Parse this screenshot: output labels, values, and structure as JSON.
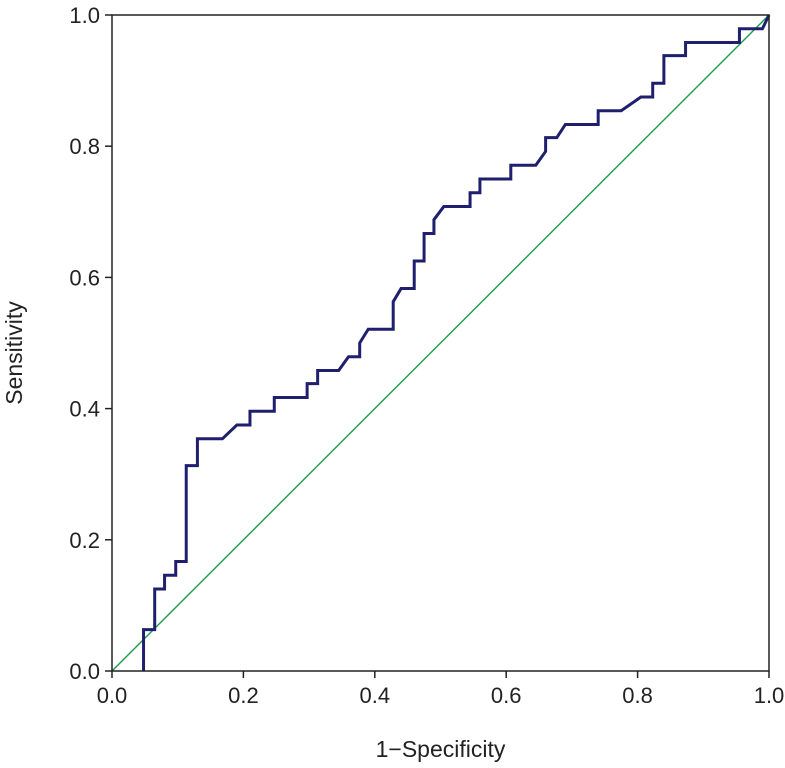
{
  "chart_data": {
    "type": "line",
    "title": "",
    "xlabel": "1−Specificity",
    "ylabel": "Sensitivity",
    "xlim": [
      0.0,
      1.0
    ],
    "ylim": [
      0.0,
      1.0
    ],
    "x_ticks": [
      "0.0",
      "0.2",
      "0.4",
      "0.6",
      "0.8",
      "1.0"
    ],
    "y_ticks": [
      "0.0",
      "0.2",
      "0.4",
      "0.6",
      "0.8",
      "1.0"
    ],
    "grid": false,
    "legend": "none",
    "series": [
      {
        "color": "#1f1f6e",
        "style": "step",
        "points": [
          [
            0.048,
            0.0
          ],
          [
            0.048,
            0.063
          ],
          [
            0.065,
            0.063
          ],
          [
            0.065,
            0.125
          ],
          [
            0.08,
            0.125
          ],
          [
            0.08,
            0.146
          ],
          [
            0.097,
            0.146
          ],
          [
            0.097,
            0.167
          ],
          [
            0.113,
            0.167
          ],
          [
            0.113,
            0.313
          ],
          [
            0.13,
            0.313
          ],
          [
            0.13,
            0.354
          ],
          [
            0.168,
            0.354
          ],
          [
            0.19,
            0.375
          ],
          [
            0.21,
            0.375
          ],
          [
            0.21,
            0.396
          ],
          [
            0.247,
            0.396
          ],
          [
            0.247,
            0.417
          ],
          [
            0.297,
            0.417
          ],
          [
            0.297,
            0.438
          ],
          [
            0.313,
            0.438
          ],
          [
            0.313,
            0.458
          ],
          [
            0.345,
            0.458
          ],
          [
            0.36,
            0.479
          ],
          [
            0.377,
            0.479
          ],
          [
            0.377,
            0.5
          ],
          [
            0.39,
            0.521
          ],
          [
            0.428,
            0.521
          ],
          [
            0.428,
            0.563
          ],
          [
            0.44,
            0.583
          ],
          [
            0.46,
            0.583
          ],
          [
            0.46,
            0.625
          ],
          [
            0.475,
            0.625
          ],
          [
            0.475,
            0.667
          ],
          [
            0.49,
            0.667
          ],
          [
            0.49,
            0.688
          ],
          [
            0.505,
            0.708
          ],
          [
            0.545,
            0.708
          ],
          [
            0.545,
            0.729
          ],
          [
            0.56,
            0.729
          ],
          [
            0.56,
            0.75
          ],
          [
            0.607,
            0.75
          ],
          [
            0.607,
            0.771
          ],
          [
            0.645,
            0.771
          ],
          [
            0.66,
            0.792
          ],
          [
            0.66,
            0.813
          ],
          [
            0.677,
            0.813
          ],
          [
            0.69,
            0.833
          ],
          [
            0.74,
            0.833
          ],
          [
            0.74,
            0.854
          ],
          [
            0.775,
            0.854
          ],
          [
            0.805,
            0.875
          ],
          [
            0.823,
            0.875
          ],
          [
            0.823,
            0.896
          ],
          [
            0.84,
            0.896
          ],
          [
            0.84,
            0.938
          ],
          [
            0.873,
            0.938
          ],
          [
            0.873,
            0.958
          ],
          [
            0.955,
            0.958
          ],
          [
            0.955,
            0.979
          ],
          [
            0.99,
            0.979
          ],
          [
            1.0,
            1.0
          ]
        ]
      },
      {
        "color": "#1a9e4a",
        "style": "reference",
        "points": [
          [
            0.0,
            0.0
          ],
          [
            1.0,
            1.0
          ]
        ]
      }
    ]
  }
}
